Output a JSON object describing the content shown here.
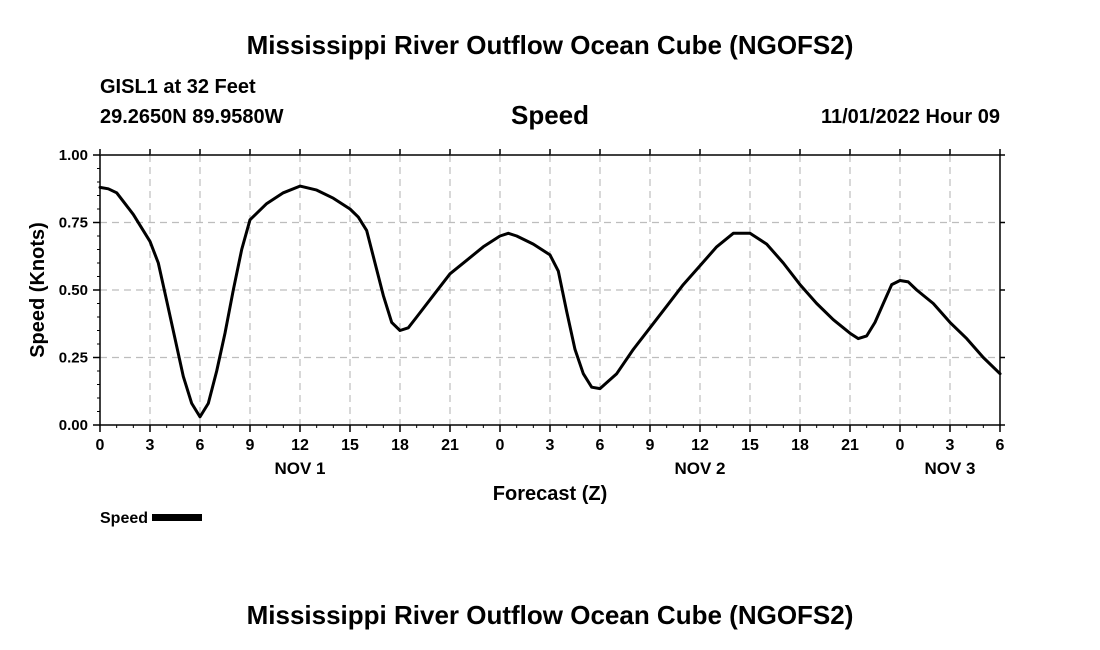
{
  "title": "Mississippi River Outflow Ocean Cube (NGOFS2)",
  "station": "GISL1 at 32 Feet",
  "coordinates": "29.2650N  89.9580W",
  "variable": "Speed",
  "datetime": "11/01/2022 Hour 09",
  "footer_title": "Mississippi River Outflow Ocean Cube (NGOFS2)",
  "legend": {
    "label": "Speed"
  },
  "chart_data": {
    "type": "line",
    "title": "Speed",
    "xlabel": "Forecast (Z)",
    "ylabel": "Speed (Knots)",
    "x_unit": "forecast hours from Nov 1 00Z",
    "xlim": [
      0,
      54
    ],
    "ylim": [
      0,
      1.0
    ],
    "grid": true,
    "legend_position": "bottom-left",
    "x_ticks": [
      {
        "hour": 0,
        "label": "0"
      },
      {
        "hour": 3,
        "label": "3"
      },
      {
        "hour": 6,
        "label": "6"
      },
      {
        "hour": 9,
        "label": "9"
      },
      {
        "hour": 12,
        "label": "12"
      },
      {
        "hour": 15,
        "label": "15"
      },
      {
        "hour": 18,
        "label": "18"
      },
      {
        "hour": 21,
        "label": "21"
      },
      {
        "hour": 24,
        "label": "0"
      },
      {
        "hour": 27,
        "label": "3"
      },
      {
        "hour": 30,
        "label": "6"
      },
      {
        "hour": 33,
        "label": "9"
      },
      {
        "hour": 36,
        "label": "12"
      },
      {
        "hour": 39,
        "label": "15"
      },
      {
        "hour": 42,
        "label": "18"
      },
      {
        "hour": 45,
        "label": "21"
      },
      {
        "hour": 48,
        "label": "0"
      },
      {
        "hour": 51,
        "label": "3"
      },
      {
        "hour": 54,
        "label": "6"
      }
    ],
    "day_labels": [
      {
        "hour": 12,
        "label": "NOV 1"
      },
      {
        "hour": 36,
        "label": "NOV 2"
      },
      {
        "hour": 51,
        "label": "NOV 3"
      }
    ],
    "y_ticks": [
      {
        "value": 0.0,
        "label": "0.00"
      },
      {
        "value": 0.25,
        "label": "0.25"
      },
      {
        "value": 0.5,
        "label": "0.50"
      },
      {
        "value": 0.75,
        "label": "0.75"
      },
      {
        "value": 1.0,
        "label": "1.00"
      }
    ],
    "series": [
      {
        "name": "Speed",
        "color": "#000000",
        "x": [
          0,
          0.5,
          1,
          2,
          3,
          3.5,
          4,
          4.5,
          5,
          5.5,
          6,
          6.5,
          7,
          7.5,
          8,
          8.5,
          9,
          10,
          11,
          12,
          13,
          14,
          15,
          15.5,
          16,
          16.5,
          17,
          17.5,
          18,
          18.5,
          19,
          20,
          21,
          22,
          23,
          24,
          24.5,
          25,
          26,
          27,
          27.5,
          28,
          28.5,
          29,
          29.5,
          30,
          31,
          32,
          33,
          34,
          35,
          36,
          37,
          38,
          39,
          40,
          41,
          42,
          43,
          44,
          45,
          45.5,
          46,
          46.5,
          47,
          47.5,
          48,
          48.5,
          49,
          50,
          51,
          52,
          53,
          54
        ],
        "values": [
          0.88,
          0.875,
          0.86,
          0.78,
          0.68,
          0.6,
          0.46,
          0.32,
          0.18,
          0.08,
          0.03,
          0.08,
          0.2,
          0.34,
          0.5,
          0.65,
          0.76,
          0.82,
          0.86,
          0.885,
          0.87,
          0.84,
          0.8,
          0.77,
          0.72,
          0.6,
          0.48,
          0.38,
          0.35,
          0.36,
          0.4,
          0.48,
          0.56,
          0.61,
          0.66,
          0.7,
          0.71,
          0.7,
          0.67,
          0.63,
          0.57,
          0.42,
          0.28,
          0.19,
          0.14,
          0.135,
          0.19,
          0.28,
          0.36,
          0.44,
          0.52,
          0.59,
          0.66,
          0.71,
          0.71,
          0.67,
          0.6,
          0.52,
          0.45,
          0.39,
          0.34,
          0.32,
          0.33,
          0.38,
          0.45,
          0.52,
          0.535,
          0.53,
          0.5,
          0.45,
          0.38,
          0.32,
          0.25,
          0.19
        ]
      }
    ]
  }
}
